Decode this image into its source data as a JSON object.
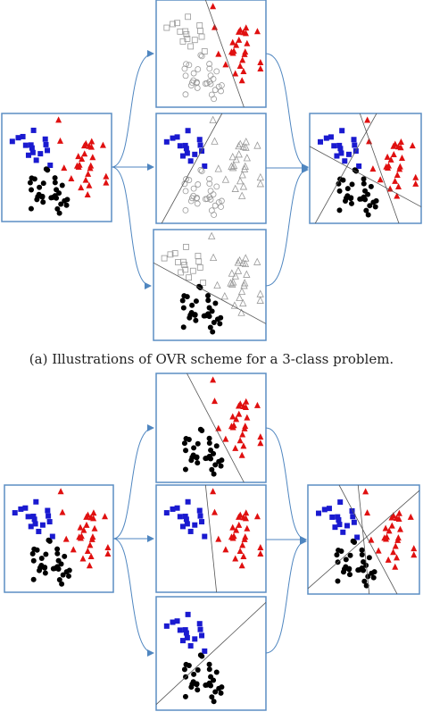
{
  "caption": "(a) Illustrations of OVR scheme for a 3-class problem."
}
